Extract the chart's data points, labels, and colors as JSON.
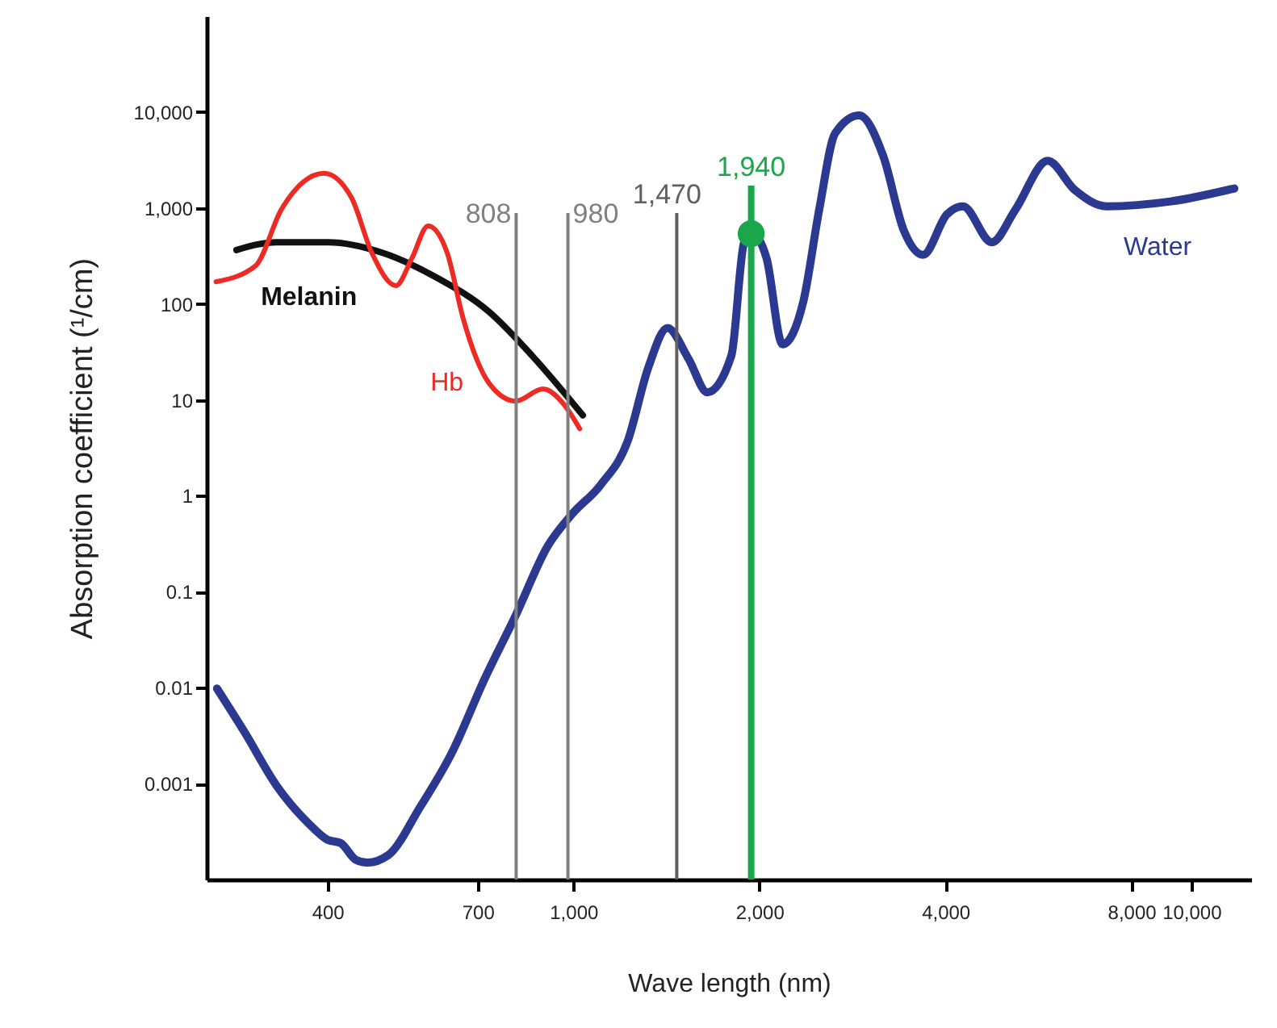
{
  "chart_data": {
    "type": "line",
    "xlabel": "Wave length (nm)",
    "ylabel": "Absorption coefficient (¹/cm)",
    "log": "xy",
    "grid": false,
    "marker": "none",
    "line_style": "solid",
    "xlim": [
      255,
      12500
    ],
    "ylim": [
      0.0001,
      100000
    ],
    "xticks": [
      400,
      700,
      {
        "value": 1000,
        "label": "1,000"
      },
      {
        "value": 2000,
        "label": "2,000"
      },
      {
        "value": 4000,
        "label": "4,000"
      },
      {
        "value": 8000,
        "label": "8,000"
      },
      {
        "value": 10000,
        "label": "10,000"
      }
    ],
    "yticks": [
      0.001,
      0.01,
      0.1,
      1,
      10,
      100,
      {
        "value": 1000,
        "label": "1,000"
      },
      {
        "value": 10000,
        "label": "10,000"
      }
    ],
    "series": [
      {
        "name": "Melanin",
        "color": "#111111",
        "x": [
          285,
          331,
          401,
          492,
          599,
          730,
          857,
          1036
        ],
        "values": [
          365,
          440,
          440,
          340,
          190,
          83,
          29,
          6.9
        ]
      },
      {
        "name": "Hb",
        "color": "#ee2a24",
        "x": [
          264,
          306,
          337,
          395,
          437,
          472,
          516,
          548,
          582,
          625,
          663,
          730,
          807,
          893,
          965,
          1024
        ],
        "values": [
          170,
          250,
          970,
          2300,
          1300,
          340,
          155,
          300,
          650,
          340,
          71,
          15,
          9.7,
          13,
          9,
          5.0
        ]
      },
      {
        "name": "Water",
        "color": "#2b3990",
        "x": [
          265,
          294,
          331,
          372,
          400,
          420,
          445,
          464,
          502,
          565,
          636,
          717,
          807,
          909,
          994,
          1107,
          1224,
          1323,
          1420,
          1535,
          1648,
          1802,
          1890,
          1947,
          2054,
          2180,
          2355,
          2500,
          2652,
          2900,
          3172,
          3427,
          3680,
          4024,
          4270,
          4754,
          5197,
          5855,
          6478,
          7296,
          9255,
          11740
        ],
        "values": [
          0.0098,
          0.0034,
          0.00095,
          0.00039,
          0.00026,
          0.00024,
          0.00016,
          0.00015,
          0.00018,
          0.00057,
          0.0021,
          0.012,
          0.057,
          0.3,
          0.64,
          1.3,
          3.7,
          22,
          56,
          27,
          12,
          29,
          440,
          540,
          300,
          38,
          105,
          970,
          6000,
          9250,
          3500,
          580,
          325,
          860,
          1040,
          440,
          970,
          3100,
          1540,
          1040,
          1170,
          1600
        ]
      },
      {
        "type": "scatter",
        "marker": "circle",
        "color": "#1aa64a",
        "x": [
          1940
        ],
        "values": [
          540
        ]
      }
    ],
    "ref_lines": [
      {
        "axis": "x",
        "value": 808,
        "label": "808",
        "color": "#808080"
      },
      {
        "axis": "x",
        "value": 980,
        "label": "980",
        "color": "#808080"
      },
      {
        "axis": "x",
        "value": 1470,
        "label": "1,470",
        "color": "#606060"
      },
      {
        "axis": "x",
        "value": 1940,
        "label": "1,940",
        "color": "#1aa64a"
      }
    ]
  }
}
